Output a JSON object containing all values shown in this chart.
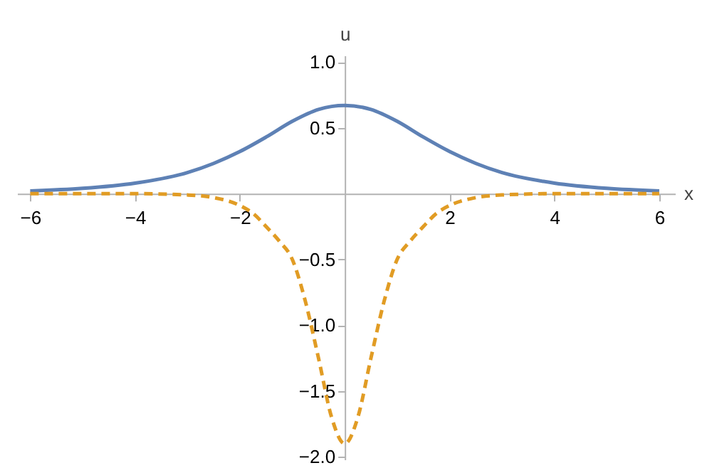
{
  "chart_data": {
    "type": "line",
    "xlabel": "x",
    "ylabel": "u",
    "xlim": [
      -6.25,
      6.3
    ],
    "ylim": [
      -2.02,
      1.05
    ],
    "xticks": [
      -6,
      -4,
      -2,
      2,
      4,
      6
    ],
    "yticks": [
      {
        "value": -2,
        "label": "−2.0"
      },
      -1.5,
      {
        "value": -1,
        "label": "−1.0"
      },
      -0.5,
      0.5,
      {
        "value": 1,
        "label": "1.0"
      }
    ],
    "series": [
      {
        "color": "#5e81b5",
        "line_style": "solid",
        "x": [
          -6,
          -5,
          -4,
          -3,
          -2.5,
          -2,
          -1.5,
          -1,
          -0.5,
          0,
          0.5,
          1,
          1.5,
          2,
          2.5,
          3,
          4,
          5,
          6
        ],
        "values": [
          0.02,
          0.04,
          0.08,
          0.16,
          0.23,
          0.32,
          0.43,
          0.55,
          0.64,
          0.67,
          0.64,
          0.55,
          0.43,
          0.32,
          0.23,
          0.16,
          0.08,
          0.04,
          0.02
        ]
      },
      {
        "color": "#e19c24",
        "line_style": "dashed",
        "x": [
          -6,
          -4,
          -3,
          -2.5,
          -2,
          -1.75,
          -1.5,
          -1.25,
          -1,
          -0.75,
          -0.5,
          -0.25,
          0,
          0.25,
          0.5,
          0.75,
          1,
          1.25,
          1.5,
          1.75,
          2,
          2.5,
          3,
          4,
          6
        ],
        "values": [
          0,
          0,
          -0.01,
          -0.03,
          -0.09,
          -0.15,
          -0.25,
          -0.36,
          -0.5,
          -0.82,
          -1.25,
          -1.7,
          -1.9,
          -1.7,
          -1.25,
          -0.82,
          -0.5,
          -0.36,
          -0.25,
          -0.15,
          -0.09,
          -0.03,
          -0.01,
          0,
          0
        ]
      }
    ]
  }
}
